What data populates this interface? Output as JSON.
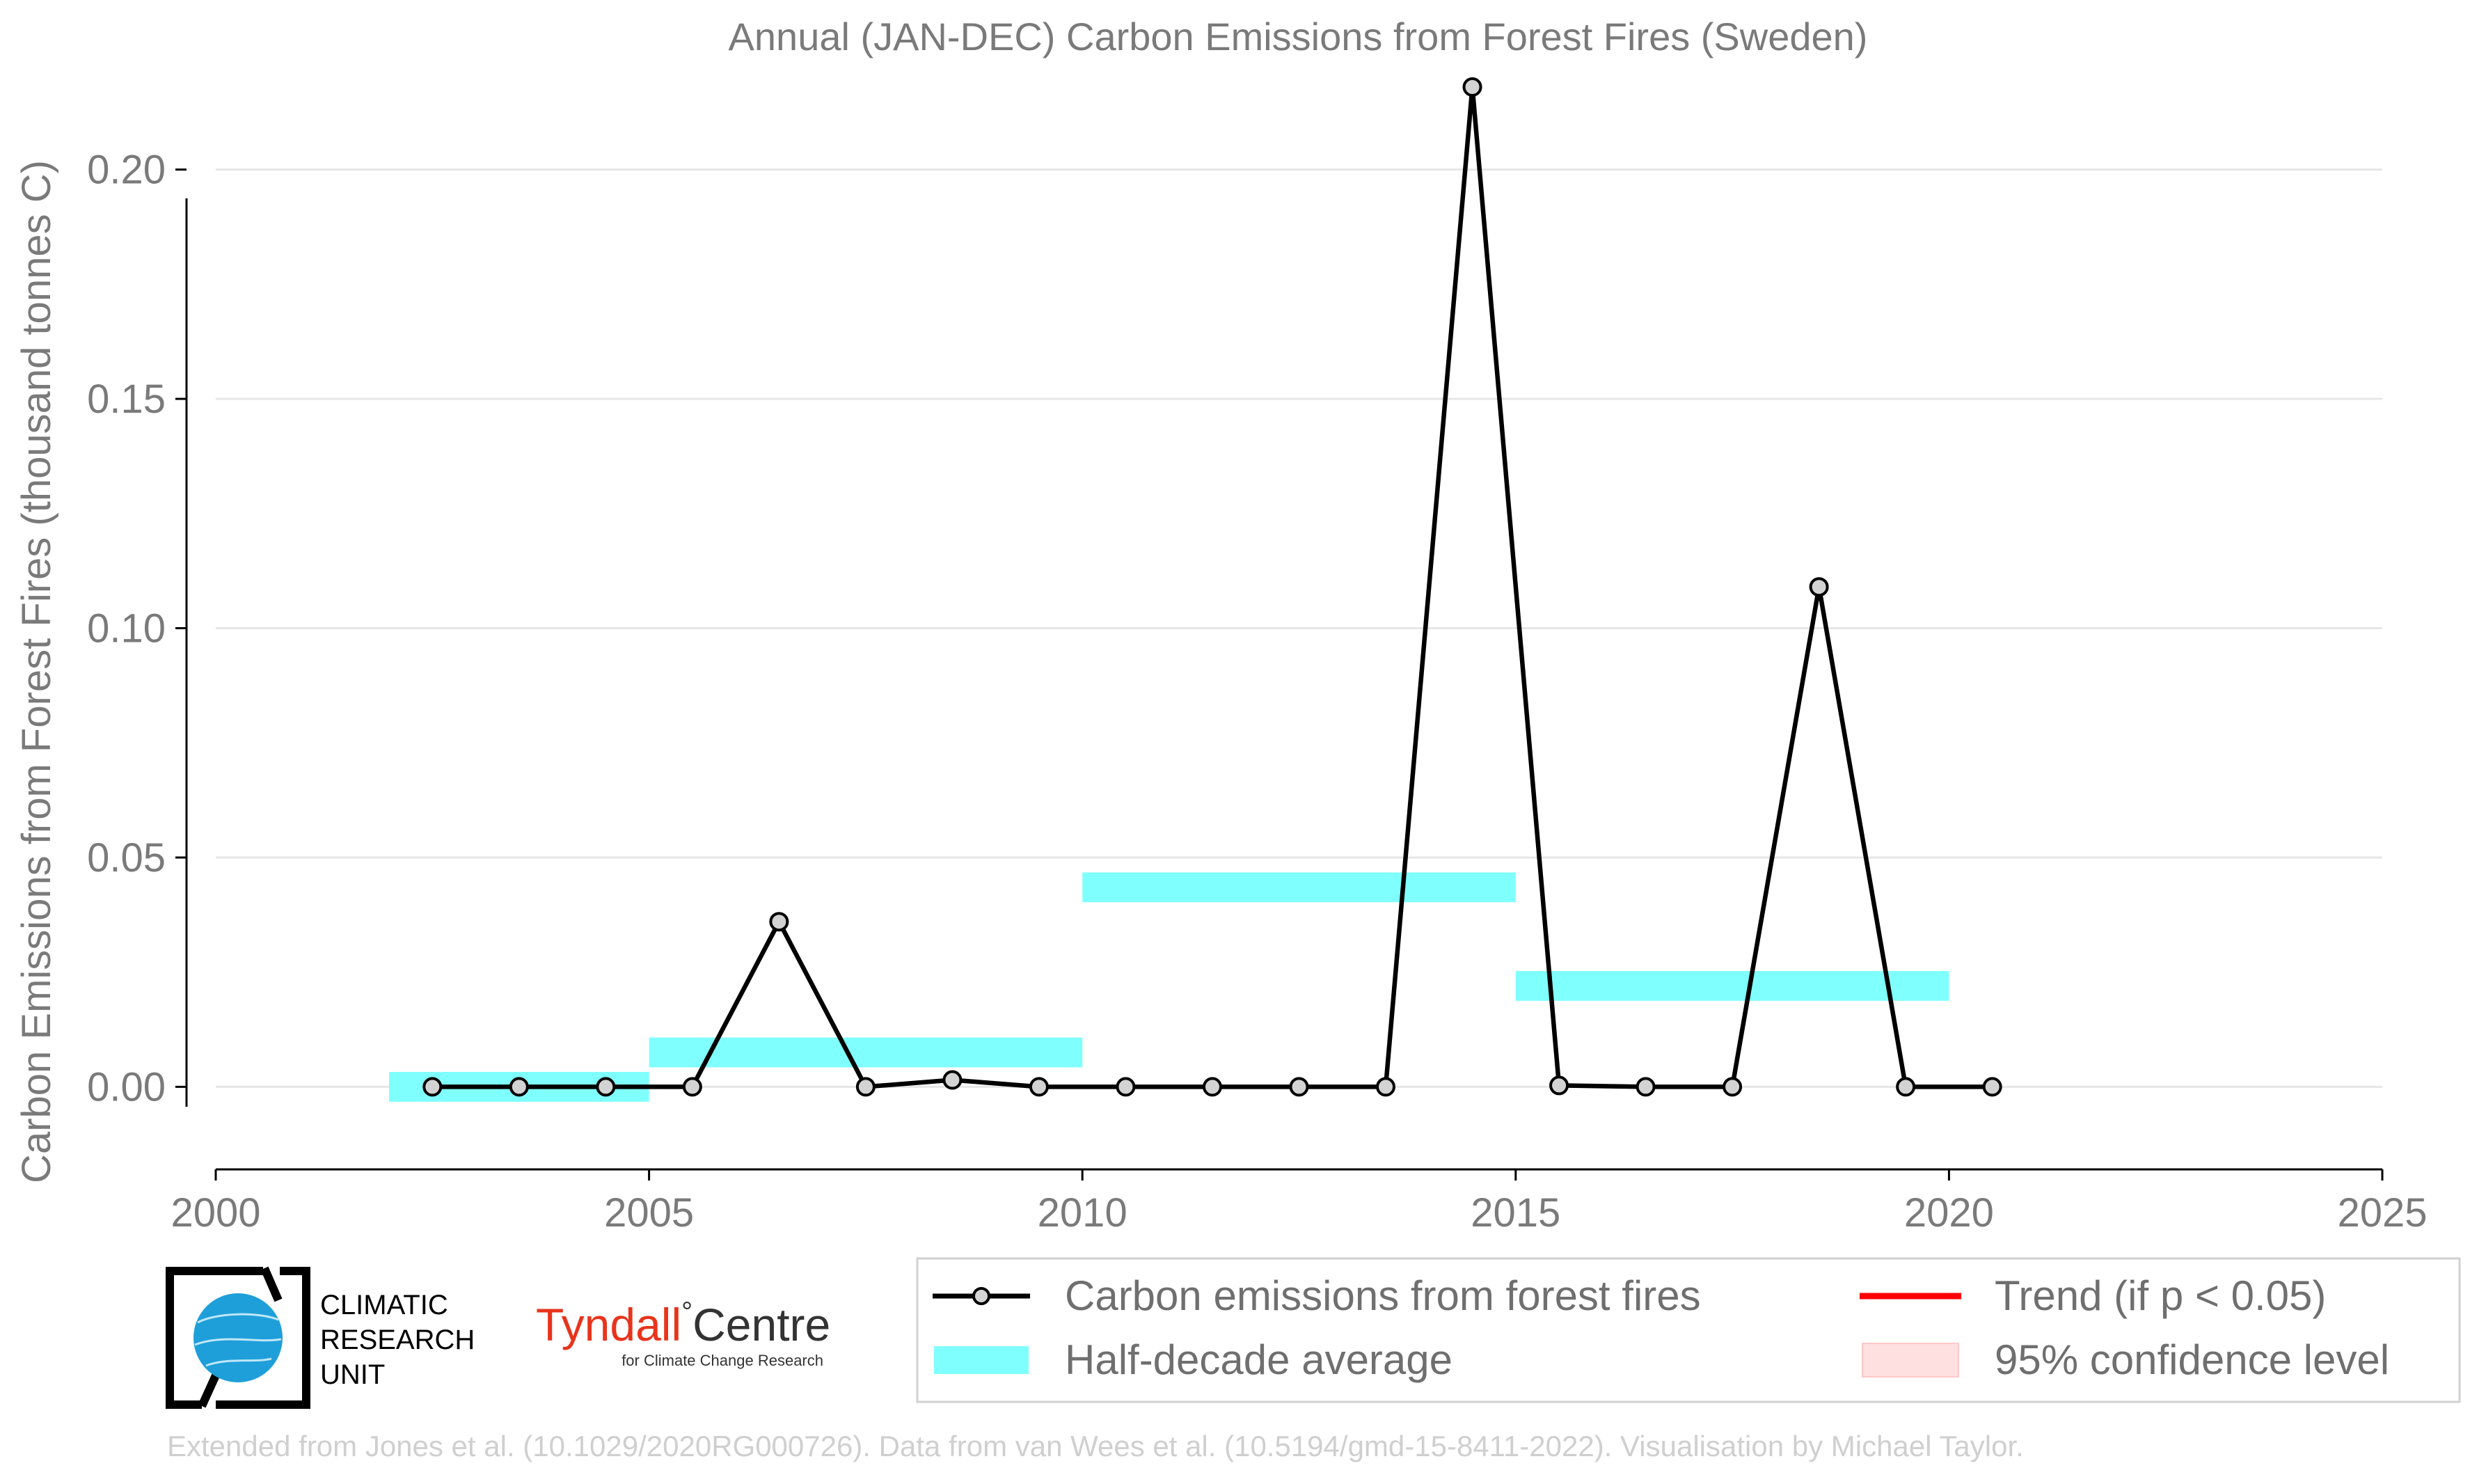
{
  "chart_data": {
    "type": "line",
    "title": "Annual (JAN-DEC) Carbon Emissions from Forest Fires (Sweden)",
    "xlabel": "",
    "ylabel": "Carbon Emissions from Forest Fires (thousand tonnes C)",
    "xlim": [
      2000,
      2025
    ],
    "ylim": [
      -0.018,
      0.218
    ],
    "x_ticks": [
      2000,
      2005,
      2010,
      2015,
      2020,
      2025
    ],
    "x_tick_labels": [
      "2000",
      "2005",
      "2010",
      "2015",
      "2020",
      "2025"
    ],
    "y_ticks": [
      0.0,
      0.05,
      0.1,
      0.15,
      0.2
    ],
    "y_tick_labels": [
      "0.00",
      "0.05",
      "0.10",
      "0.15",
      "0.20"
    ],
    "grid": "horizontal",
    "series": [
      {
        "name": "Carbon emissions from forest fires",
        "color": "#000000",
        "marker_fill": "#d3d3d3",
        "x": [
          2002.5,
          2003.5,
          2004.5,
          2005.5,
          2006.5,
          2007.5,
          2008.5,
          2009.5,
          2010.5,
          2011.5,
          2012.5,
          2013.5,
          2014.5,
          2015.5,
          2016.5,
          2017.5,
          2018.5,
          2019.5,
          2020.5
        ],
        "y": [
          0.0,
          0.0,
          0.0,
          0.0,
          0.036,
          0.0,
          0.0015,
          0.0,
          0.0,
          0.0,
          0.0,
          0.0,
          0.218,
          0.0003,
          0.0,
          0.0,
          0.109,
          0.0,
          0.0
        ]
      }
    ],
    "half_decade_average": {
      "name": "Half-decade average",
      "color": "#80ffff",
      "segments": [
        {
          "x_start": 2002,
          "x_end": 2005,
          "y": 0.0
        },
        {
          "x_start": 2005,
          "x_end": 2010,
          "y": 0.0075
        },
        {
          "x_start": 2010,
          "x_end": 2015,
          "y": 0.0435
        },
        {
          "x_start": 2015,
          "x_end": 2020,
          "y": 0.022
        }
      ]
    },
    "legend": {
      "placement": "bottom-right",
      "entries": [
        {
          "label": "Carbon emissions from forest fires",
          "kind": "line-marker",
          "color": "#000000"
        },
        {
          "label": "Trend (if p < 0.05)",
          "kind": "line",
          "color": "#ff0000"
        },
        {
          "label": "Half-decade average",
          "kind": "band",
          "color": "#80ffff"
        },
        {
          "label": "95% confidence level",
          "kind": "patch",
          "color": "#ffd6d6"
        }
      ]
    }
  },
  "logos": {
    "cru": [
      "CLIMATIC",
      "RESEARCH",
      "UNIT"
    ],
    "tyndall_name_part1": "Tyndall",
    "tyndall_degree": "°",
    "tyndall_name_part2": "Centre",
    "tyndall_subtitle": "for Climate Change Research",
    "tyndall_color": "#e8341c"
  },
  "credit": "Extended from Jones et al. (10.1029/2020RG000726). Data from van Wees et al. (10.5194/gmd-15-8411-2022). Visualisation by Michael Taylor."
}
